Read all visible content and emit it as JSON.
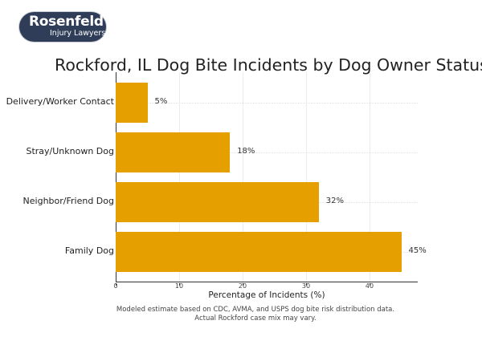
{
  "logo": {
    "name": "Rosenfeld",
    "tagline": "Injury Lawyers"
  },
  "chart_data": {
    "type": "bar",
    "orientation": "horizontal",
    "title": "Rockford, IL Dog Bite Incidents by Dog Owner Status",
    "xlabel": "Percentage of Incidents (%)",
    "ylabel": "",
    "categories": [
      "Delivery/Worker Contact",
      "Stray/Unknown Dog",
      "Neighbor/Friend Dog",
      "Family Dog"
    ],
    "values": [
      5,
      18,
      32,
      45
    ],
    "value_labels": [
      "5%",
      "18%",
      "32%",
      "45%"
    ],
    "xlim": [
      0,
      47.5
    ],
    "xticks": [
      0,
      10,
      20,
      30,
      40
    ],
    "xtick_labels": [
      "0",
      "10",
      "20",
      "30",
      "40"
    ],
    "grid": true,
    "legend": null,
    "bar_color": "#e5a000",
    "footnote": [
      "Modeled estimate based on CDC, AVMA, and USPS dog bite risk distribution data.",
      "Actual Rockford case mix may vary."
    ]
  }
}
